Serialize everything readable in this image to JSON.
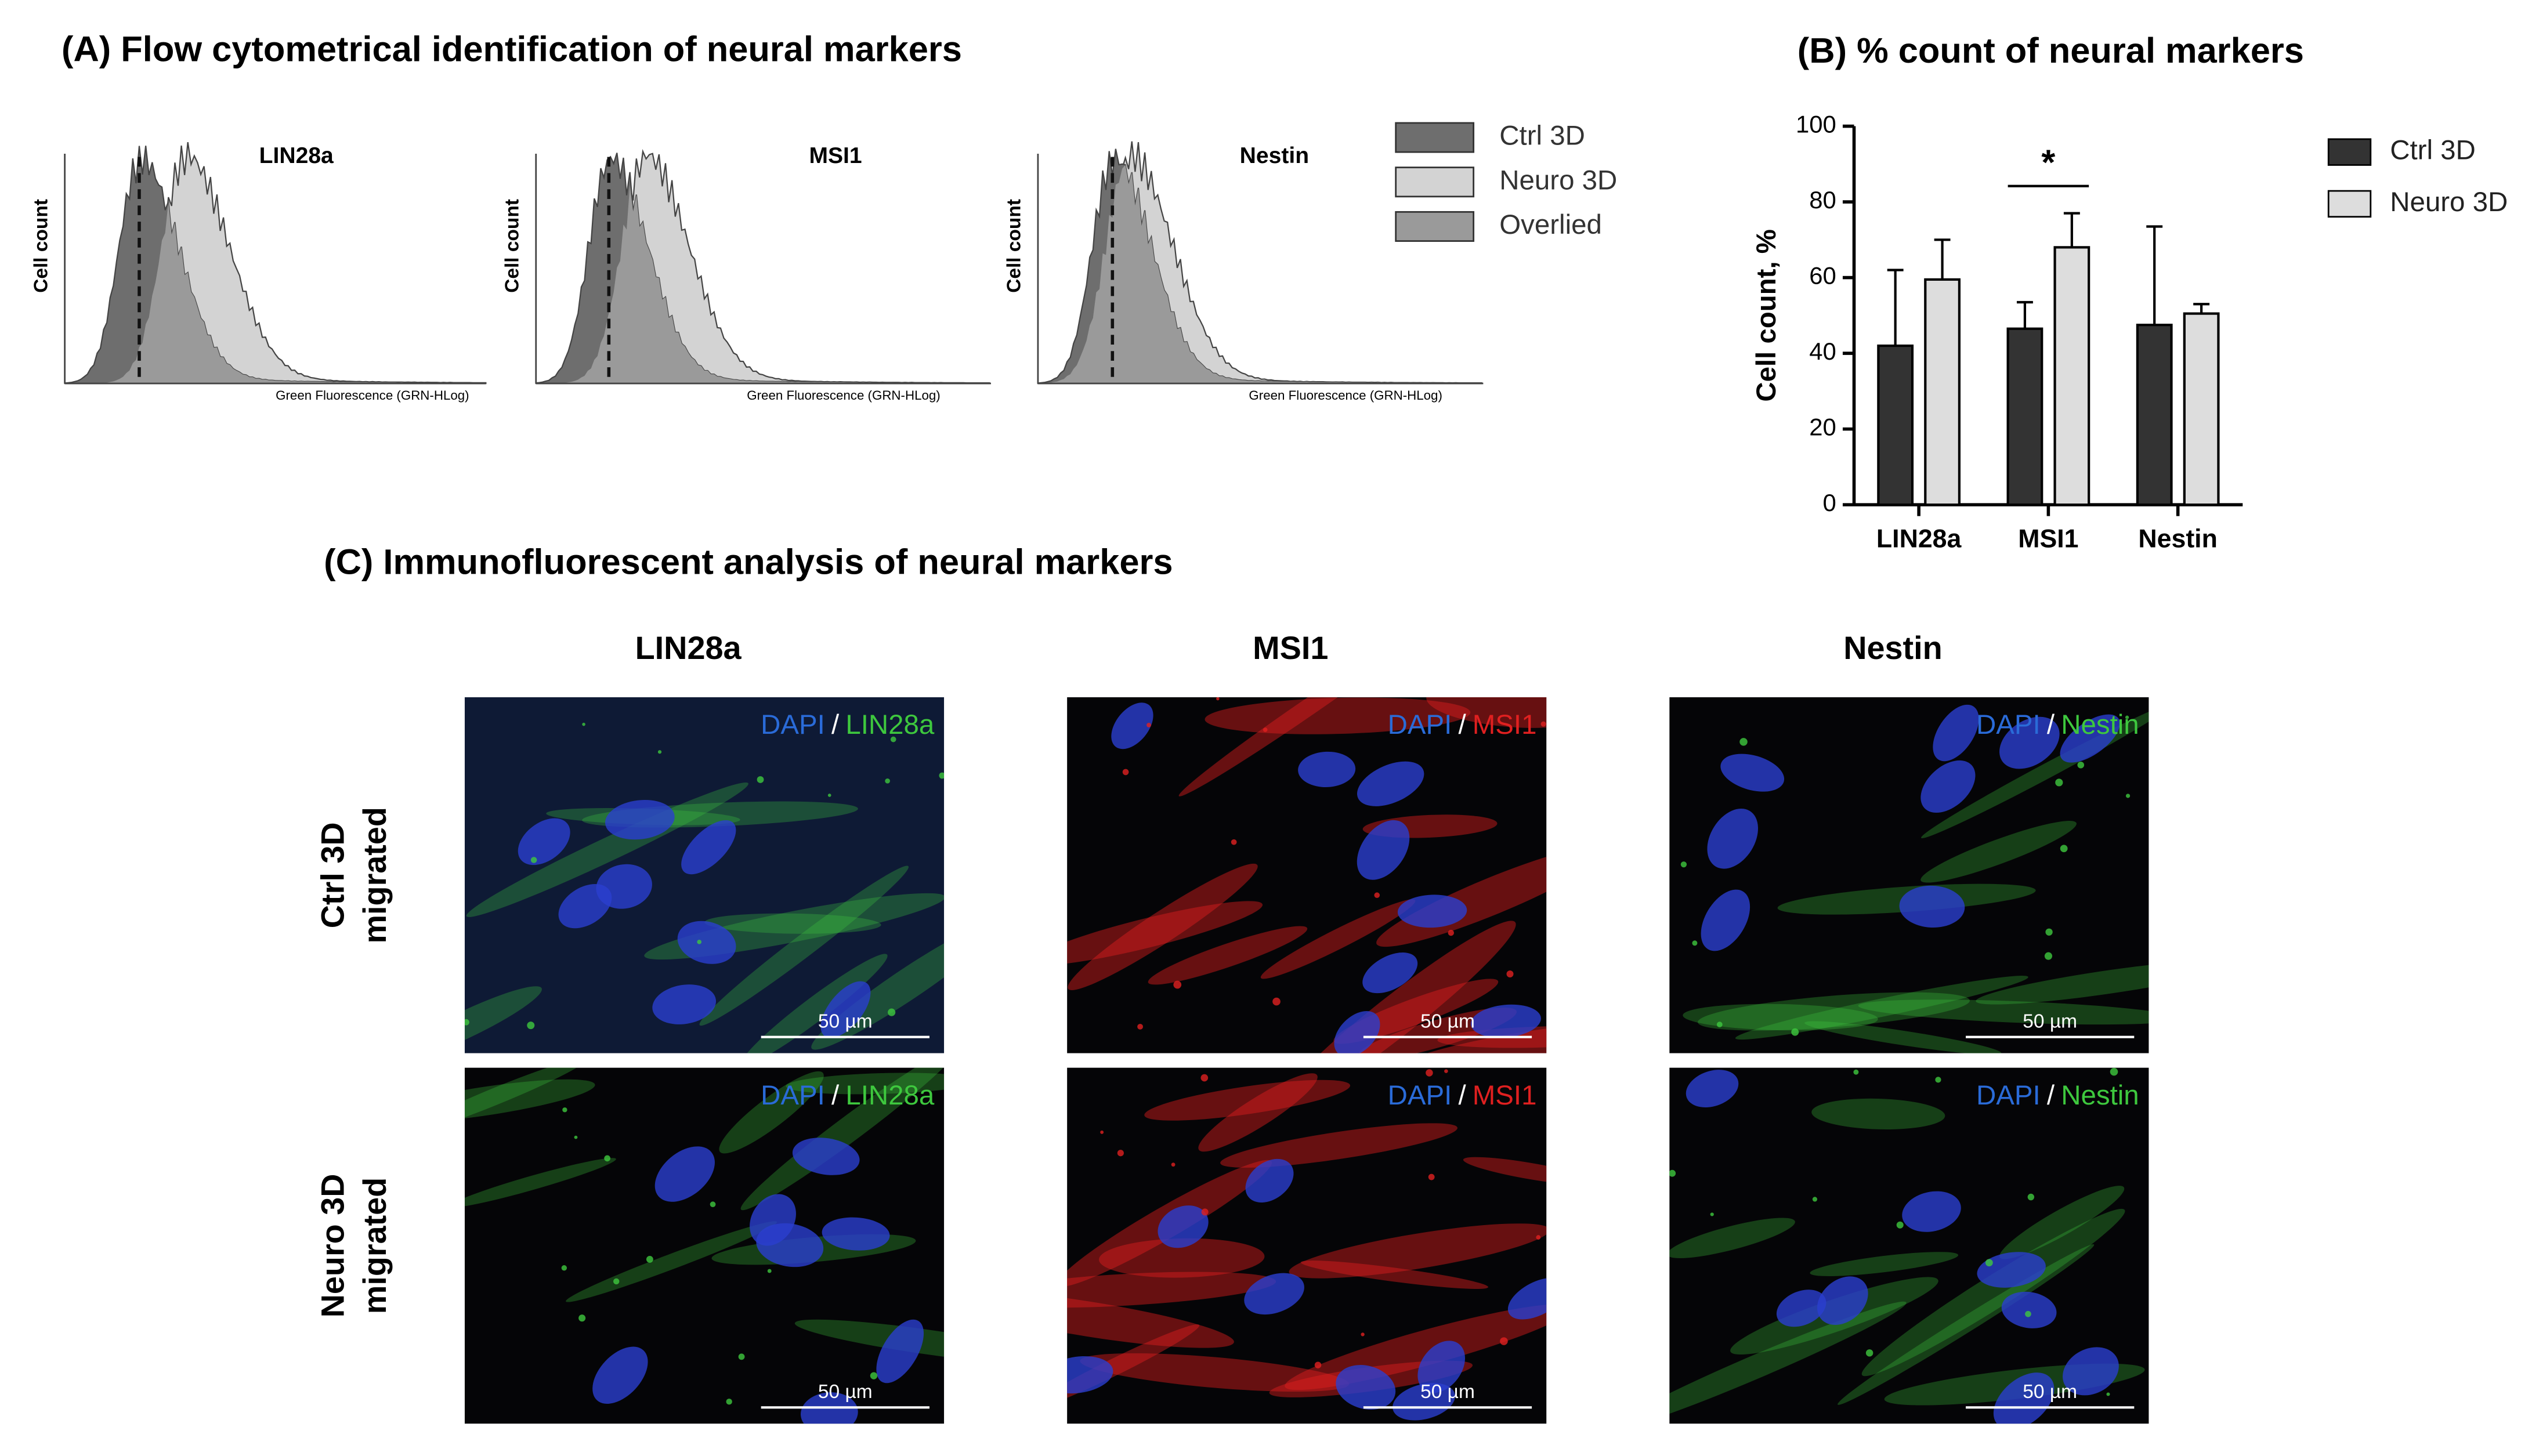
{
  "panel_a": {
    "title": "(A) Flow cytometrical identification  of neural markers",
    "plots": [
      {
        "label": "LIN28a",
        "y_label": "Cell count",
        "x_label": "Green Fluorescence (GRN-HLog)"
      },
      {
        "label": "MSI1",
        "y_label": "Cell count",
        "x_label": "Green Fluorescence (GRN-HLog)"
      },
      {
        "label": "Nestin",
        "y_label": "Cell count",
        "x_label": "Green Fluorescence (GRN-HLog)"
      }
    ],
    "legend": [
      {
        "name": "Ctrl 3D",
        "color": "#6e6e6e"
      },
      {
        "name": "Neuro 3D",
        "color": "#d3d3d3"
      },
      {
        "name": "Overlied",
        "color": "#9a9a9a"
      }
    ]
  },
  "chart_data": {
    "type": "bar",
    "title": "(B) % count of neural markers",
    "y_label": "Cell count, %",
    "categories": [
      "LIN28a",
      "MSI1",
      "Nestin"
    ],
    "series": [
      {
        "name": "Ctrl 3D",
        "color": "#333333",
        "values": [
          42,
          46.5,
          47.5
        ],
        "errors": [
          20,
          7,
          26
        ]
      },
      {
        "name": "Neuro 3D",
        "color": "#dddddd",
        "values": [
          59.5,
          68,
          50.5
        ],
        "errors": [
          10.5,
          9,
          2.5
        ]
      }
    ],
    "ylim": [
      0,
      100
    ],
    "yticks": [
      0,
      20,
      40,
      60,
      80,
      100
    ],
    "annotations": [
      {
        "text": "*",
        "category": 1
      }
    ]
  },
  "panel_c": {
    "title": "(C) Immunofluorescent analysis  of neural markers",
    "columns": [
      {
        "label": "LIN28a",
        "color": "#3ec83e"
      },
      {
        "label": "MSI1",
        "color": "#e02020"
      },
      {
        "label": "Nestin",
        "color": "#3ec83e"
      }
    ],
    "rows": [
      [
        "Ctrl 3D",
        "migrated"
      ],
      [
        "Neuro 3D",
        "migrated"
      ]
    ],
    "images": [
      [
        {
          "dapi": "DAPI",
          "slash": "/",
          "marker": "LIN28a",
          "scale_bar": "50 µm"
        },
        {
          "dapi": "DAPI",
          "slash": "/",
          "marker": "MSI1",
          "scale_bar": "50 µm"
        },
        {
          "dapi": "DAPI",
          "slash": "/",
          "marker": "Nestin",
          "scale_bar": "50 µm"
        }
      ],
      [
        {
          "dapi": "DAPI",
          "slash": "/",
          "marker": "LIN28a",
          "scale_bar": "50 µm"
        },
        {
          "dapi": "DAPI",
          "slash": "/",
          "marker": "MSI1",
          "scale_bar": "50 µm"
        },
        {
          "dapi": "DAPI",
          "slash": "/",
          "marker": "Nestin",
          "scale_bar": "50 µm"
        }
      ]
    ]
  }
}
